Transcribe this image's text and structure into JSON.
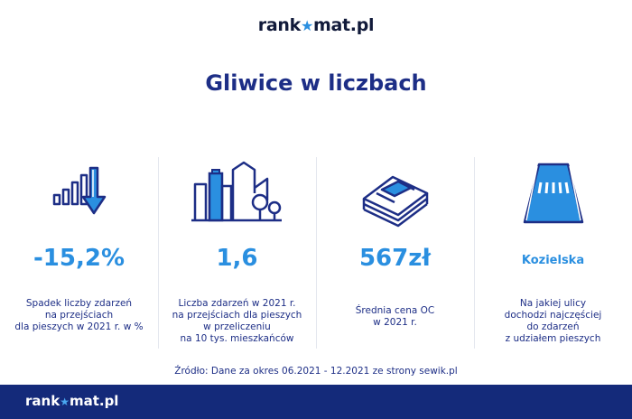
{
  "header": {
    "logo_prefix": "rank",
    "logo_suffix": "mat.pl",
    "title": "Gliwice w liczbach"
  },
  "stats": [
    {
      "icon": "declining-bar-chart-icon",
      "value": "-15,2%",
      "description": "Spadek liczby zdarzeń\nna przejściach\ndla pieszych w 2021 r. w %"
    },
    {
      "icon": "city-buildings-icon",
      "value": "1,6",
      "description": "Liczba zdarzeń w 2021 r.\nna przejściach dla pieszych\nw przeliczeniu\nna 10 tys. mieszkańców"
    },
    {
      "icon": "money-stack-icon",
      "value": "567zł",
      "description": "Średnia cena OC\nw 2021 r."
    },
    {
      "icon": "crosswalk-road-icon",
      "value": "Kozielska",
      "description": "Na jakiej ulicy\ndochodzi najczęściej\ndo zdarzeń\nz udziałem pieszych"
    }
  ],
  "source": "Źródło: Dane za okres 06.2021 - 12.2021 ze strony sewik.pl",
  "footer": {
    "logo_prefix": "rank",
    "logo_suffix": "mat.pl"
  },
  "colors": {
    "navy": "#1d2e86",
    "accent_blue": "#2a8fe0",
    "footer_bg": "#142a7a"
  }
}
